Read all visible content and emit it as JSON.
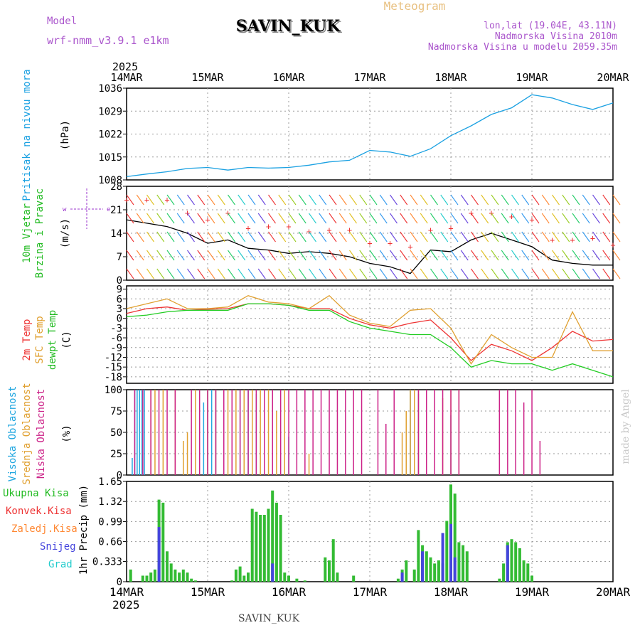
{
  "header": {
    "model_label": "Model",
    "model_name": "wrf-nmm_v3.9.1 e1km",
    "station": "SAVIN_KUK",
    "chart_title": "Meteogram",
    "lonlat": "lon,lat (19.04E, 43.11N)",
    "elevation": "Nadmorska Visina 2010m",
    "model_elevation": "Nadmorska Visina u modelu 2059.35m",
    "credit": "made by Angel",
    "footer_station": "SAVIN_KUK"
  },
  "time_axis": {
    "year": "2025",
    "ticks": [
      "14MAR",
      "15MAR",
      "16MAR",
      "17MAR",
      "18MAR",
      "19MAR",
      "20MAR"
    ],
    "span_days": [
      0,
      6
    ]
  },
  "colors": {
    "pressure": "#1ba1e2",
    "wind_label": "#22bb22",
    "temp2m": "#ee3333",
    "sfc": "#e0a030",
    "dewpt": "#22cc22",
    "high_cloud": "#22a7e0",
    "mid_cloud": "#e0a030",
    "low_cloud": "#cc2288",
    "precip_total": "#33bb33",
    "precip_conv": "#ee3333",
    "precip_frz": "#ff8833",
    "snow": "#4444dd",
    "graupel": "#22cccc",
    "dir_marker": "#ee3333",
    "axis_purple": "#9933cc"
  },
  "chart_data": [
    {
      "type": "line",
      "panel": "pressure",
      "ylabel": "Pritisak na nivou mora",
      "unit": "(hPa)",
      "ylim": [
        1008,
        1036
      ],
      "yticks": [
        "1036",
        "1029",
        "1022",
        "1015",
        "1008"
      ],
      "grid": true,
      "series": [
        {
          "name": "Pritisak na nivou mora",
          "x": [
            0,
            0.25,
            0.5,
            0.75,
            1,
            1.25,
            1.5,
            1.75,
            2,
            2.25,
            2.5,
            2.75,
            3,
            3.25,
            3.5,
            3.75,
            4,
            4.25,
            4.5,
            4.75,
            5,
            5.25,
            5.5,
            5.75,
            6
          ],
          "y": [
            1009,
            1009.8,
            1010.5,
            1011.5,
            1011.8,
            1011,
            1011.8,
            1011.6,
            1011.8,
            1012.5,
            1013.5,
            1014,
            1017,
            1016.5,
            1015.2,
            1017.5,
            1021.5,
            1024.5,
            1028,
            1030,
            1034,
            1033,
            1031,
            1029.5,
            1031.5
          ]
        }
      ]
    },
    {
      "type": "line",
      "panel": "wind",
      "ylabel": "10m Vjetar",
      "ylabel2": "Brzina i Pravac",
      "unit": "(m/s)",
      "ylim": [
        0,
        28
      ],
      "yticks": [
        "28",
        "21",
        "14",
        "7",
        "0"
      ],
      "grid": true,
      "series": [
        {
          "name": "Brzina",
          "x": [
            0,
            0.25,
            0.5,
            0.75,
            1,
            1.25,
            1.5,
            1.75,
            2,
            2.25,
            2.5,
            2.75,
            3,
            3.25,
            3.5,
            3.75,
            4,
            4.25,
            4.5,
            4.75,
            5,
            5.25,
            5.5,
            5.75,
            6
          ],
          "y": [
            18,
            17,
            16,
            14,
            11,
            12,
            9.5,
            9,
            8,
            8.5,
            8,
            7,
            5,
            4,
            2,
            9,
            8.5,
            12,
            14,
            12,
            10,
            6,
            5,
            4.5,
            4.5
          ]
        }
      ]
    },
    {
      "type": "line",
      "panel": "temperature",
      "ylabel": "2m Temp",
      "ylabel2": "SFC Temp",
      "ylabel3": "dewpt Temp",
      "unit": "(C)",
      "ylim": [
        -20,
        10
      ],
      "yticks": [
        "9",
        "6",
        "3",
        "0",
        "-3",
        "-6",
        "-9",
        "-12",
        "-15",
        "-18"
      ],
      "grid": true,
      "series": [
        {
          "name": "2m Temp",
          "x": [
            0,
            0.25,
            0.5,
            0.75,
            1,
            1.25,
            1.5,
            1.75,
            2,
            2.25,
            2.5,
            2.75,
            3,
            3.25,
            3.5,
            3.75,
            4,
            4.25,
            4.5,
            4.75,
            5,
            5.25,
            5.5,
            5.75,
            6
          ],
          "y": [
            1.5,
            3,
            3.5,
            2.5,
            2.8,
            3,
            4.5,
            4.5,
            4,
            3,
            3,
            0,
            -2,
            -3,
            -1.5,
            -0.5,
            -6,
            -13,
            -8,
            -10,
            -13,
            -9,
            -4,
            -7,
            -6.5
          ]
        },
        {
          "name": "SFC Temp",
          "x": [
            0,
            0.25,
            0.5,
            0.75,
            1,
            1.25,
            1.5,
            1.75,
            2,
            2.25,
            2.5,
            2.75,
            3,
            3.25,
            3.5,
            3.75,
            4,
            4.25,
            4.5,
            4.75,
            5,
            5.25,
            5.5,
            5.75,
            6
          ],
          "y": [
            3,
            4.5,
            6,
            3,
            3,
            3.5,
            7,
            5,
            4.5,
            3,
            7,
            1,
            -1.5,
            -2.5,
            2.5,
            3,
            -3,
            -14,
            -5,
            -9,
            -12,
            -12,
            2,
            -10,
            -10
          ]
        },
        {
          "name": "dewpt Temp",
          "x": [
            0,
            0.25,
            0.5,
            0.75,
            1,
            1.25,
            1.5,
            1.75,
            2,
            2.25,
            2.5,
            2.75,
            3,
            3.25,
            3.5,
            3.75,
            4,
            4.25,
            4.5,
            4.75,
            5,
            5.25,
            5.5,
            5.75,
            6
          ],
          "y": [
            0.5,
            1,
            2,
            2.5,
            2.5,
            2.5,
            4.5,
            4.5,
            4,
            2.5,
            2.5,
            -1,
            -3,
            -4,
            -5,
            -5,
            -9,
            -15,
            -13,
            -14,
            -14,
            -16,
            -14,
            -16,
            -18
          ]
        }
      ]
    },
    {
      "type": "bar",
      "panel": "cloud",
      "ylabel": "Visoka Oblacnost",
      "ylabel2": "Srednja Oblacnost",
      "ylabel3": "Niska Oblacnost",
      "unit": "(%)",
      "ylim": [
        0,
        100
      ],
      "yticks": [
        "100",
        "75",
        "50",
        "25",
        "0"
      ],
      "grid": true,
      "series": [
        {
          "name": "Visoka Oblacnost",
          "x": [
            0.07,
            0.1,
            0.13,
            0.16,
            0.19,
            0.22,
            0.95,
            1.0,
            1.05,
            1.1,
            1.2,
            1.3,
            1.4,
            1.5,
            1.6,
            1.7,
            1.8,
            2.0,
            3.5,
            3.6,
            4.0
          ],
          "values": [
            20,
            100,
            100,
            100,
            100,
            100,
            85,
            100,
            100,
            100,
            90,
            85,
            100,
            100,
            95,
            60,
            55,
            45,
            100,
            95,
            70
          ]
        },
        {
          "name": "Srednja Oblacnost",
          "x": [
            0.3,
            0.35,
            0.45,
            0.6,
            0.7,
            0.75,
            0.85,
            1.0,
            1.1,
            1.25,
            1.35,
            1.45,
            1.55,
            1.65,
            1.75,
            1.85,
            1.95,
            2.25,
            3.4,
            3.45,
            3.5,
            3.55,
            3.6,
            3.7,
            3.8,
            3.9,
            4.0,
            4.1
          ],
          "values": [
            100,
            100,
            100,
            100,
            40,
            50,
            100,
            100,
            100,
            100,
            100,
            100,
            100,
            100,
            100,
            75,
            100,
            25,
            50,
            75,
            100,
            100,
            100,
            100,
            100,
            90,
            100,
            100
          ]
        },
        {
          "name": "Niska Oblacnost",
          "x": [
            0.1,
            0.2,
            0.3,
            0.4,
            0.5,
            0.6,
            0.8,
            0.9,
            1.0,
            1.1,
            1.2,
            1.3,
            1.4,
            1.5,
            1.6,
            1.7,
            1.8,
            1.9,
            2.0,
            2.1,
            2.2,
            2.3,
            2.4,
            2.5,
            2.6,
            2.7,
            2.8,
            2.9,
            3.1,
            3.2,
            3.3,
            3.6,
            3.7,
            3.8,
            3.9,
            4.0,
            4.1,
            4.6,
            4.7,
            4.8,
            4.9,
            5.0,
            5.1
          ],
          "values": [
            100,
            100,
            100,
            100,
            100,
            100,
            100,
            100,
            100,
            100,
            100,
            100,
            100,
            100,
            100,
            100,
            100,
            100,
            100,
            100,
            100,
            100,
            100,
            100,
            100,
            100,
            100,
            100,
            100,
            60,
            100,
            100,
            100,
            100,
            100,
            100,
            100,
            100,
            100,
            100,
            85,
            100,
            40
          ]
        }
      ]
    },
    {
      "type": "bar",
      "panel": "precip",
      "ylabel": "1hr Precip (mm)",
      "legend": [
        "Ukupna Kisa",
        "Konvek.Kisa",
        "Zaledj.Kisa",
        "Snijeg",
        "Grad"
      ],
      "ylim": [
        0,
        1.65
      ],
      "yticks": [
        "1.65",
        "1.32",
        "0.99",
        "0.66",
        "0.333",
        "0"
      ],
      "grid": true,
      "series": [
        {
          "name": "Ukupna Kisa",
          "x": [
            0.05,
            0.2,
            0.25,
            0.3,
            0.35,
            0.4,
            0.45,
            0.5,
            0.55,
            0.6,
            0.65,
            0.7,
            0.75,
            0.8,
            0.85,
            1.3,
            1.35,
            1.4,
            1.45,
            1.5,
            1.55,
            1.6,
            1.65,
            1.7,
            1.75,
            1.8,
            1.85,
            1.9,
            1.95,
            2.0,
            2.1,
            2.2,
            2.45,
            2.5,
            2.55,
            2.6,
            2.8,
            3.35,
            3.4,
            3.45,
            3.55,
            3.6,
            3.65,
            3.7,
            3.75,
            3.8,
            3.85,
            3.9,
            3.95,
            4.0,
            4.05,
            4.1,
            4.15,
            4.2,
            4.6,
            4.65,
            4.7,
            4.75,
            4.8,
            4.85,
            4.9,
            4.95,
            5.0
          ],
          "values": [
            0.2,
            0.1,
            0.1,
            0.15,
            0.2,
            1.35,
            1.3,
            0.5,
            0.3,
            0.2,
            0.15,
            0.2,
            0.15,
            0.05,
            0.02,
            0.02,
            0.2,
            0.25,
            0.1,
            0.15,
            1.2,
            1.15,
            1.1,
            1.1,
            1.2,
            1.5,
            1.3,
            1.1,
            0.15,
            0.1,
            0.05,
            0.02,
            0.4,
            0.35,
            0.7,
            0.15,
            0.1,
            0.05,
            0.2,
            0.35,
            0.2,
            0.85,
            0.6,
            0.5,
            0.4,
            0.3,
            0.35,
            0.3,
            1.0,
            1.6,
            1.45,
            0.65,
            0.6,
            0.5,
            0.05,
            0.3,
            0.65,
            0.7,
            0.65,
            0.55,
            0.35,
            0.3,
            0.1
          ]
        },
        {
          "name": "Snijeg",
          "x": [
            0.4,
            1.8,
            3.4,
            3.65,
            3.9,
            4.0,
            4.05,
            4.7
          ],
          "values": [
            0.9,
            0.3,
            0.15,
            0.5,
            0.8,
            0.95,
            0.4,
            0.6
          ]
        }
      ]
    }
  ]
}
